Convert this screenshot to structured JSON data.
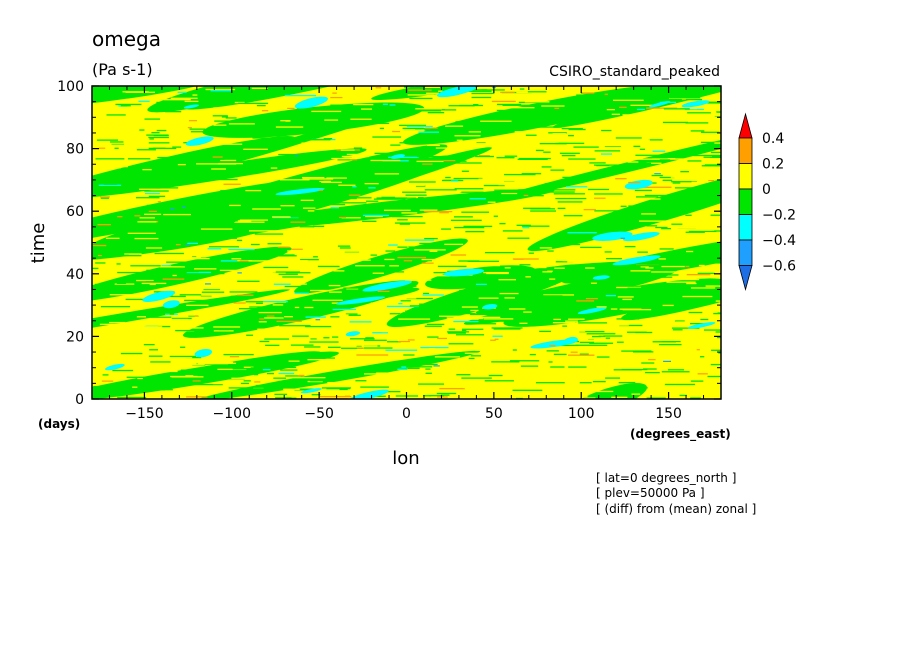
{
  "chart_data": {
    "type": "heatmap",
    "title": "omega",
    "units": "(Pa s-1)",
    "subtitle": "CSIRO_standard_peaked",
    "xlabel": "lon",
    "ylabel": "time",
    "x_units": "(degrees_east)",
    "y_units": "(days)",
    "xlim": [
      -180,
      180
    ],
    "ylim": [
      0,
      100
    ],
    "x_ticks": [
      -150,
      -100,
      -50,
      0,
      50,
      100,
      150
    ],
    "x_tick_labels": [
      "−150",
      "−100",
      "−50",
      "0",
      "50",
      "100",
      "150"
    ],
    "y_ticks": [
      0,
      20,
      40,
      60,
      80,
      100
    ],
    "y_tick_labels": [
      "0",
      "20",
      "40",
      "60",
      "80",
      "100"
    ],
    "colorbar": {
      "levels": [
        -0.6,
        -0.4,
        -0.2,
        0,
        0.2,
        0.4
      ],
      "labels": [
        "−0.6",
        "−0.4",
        "−0.2",
        "0",
        "0.2",
        "0.4"
      ],
      "colors": [
        "#1e6fe6",
        "#1fa0ff",
        "#00ffff",
        "#00e600",
        "#ffff00",
        "#ffa000",
        "#ff0000"
      ],
      "extend": "both"
    },
    "field_description": "zonal-anomaly omega, mostly within -0.2 to 0.2 Pa s-1",
    "grid": false
  },
  "annotations": [
    "[ lat=0 degrees_north ]",
    "[ plev=50000 Pa ]",
    "[ (diff) from (mean) zonal ]"
  ]
}
